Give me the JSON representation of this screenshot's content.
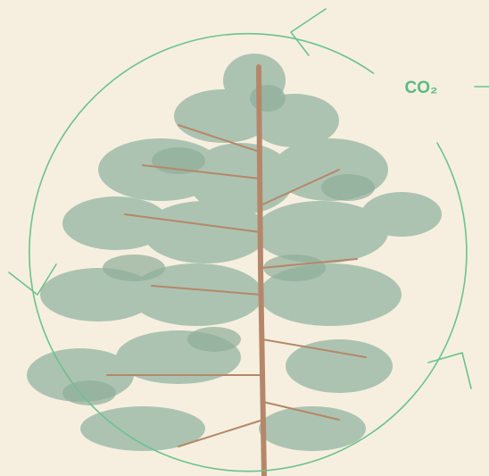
{
  "label": "CO₂"
}
